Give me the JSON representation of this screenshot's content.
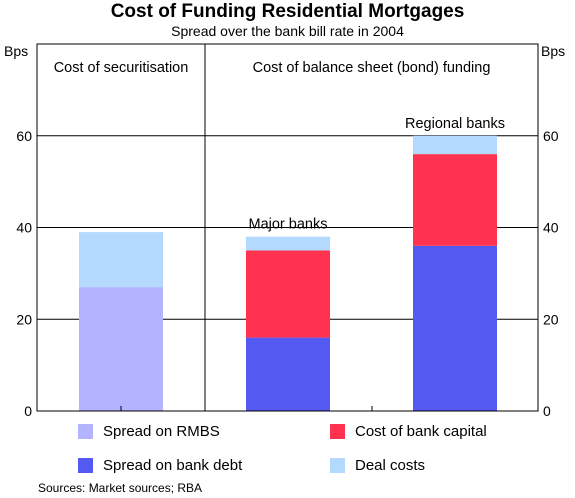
{
  "title": "Cost of Funding Residential Mortgages",
  "subtitle": "Spread over the bank bill rate in 2004",
  "source": "Sources: Market sources; RBA",
  "chart_data": {
    "type": "bar",
    "stacked": true,
    "title": "Cost of Funding Residential Mortgages",
    "subtitle": "Spread over the bank bill rate in 2004",
    "ylabel_left": "Bps",
    "ylabel_right": "Bps",
    "ylim": [
      0,
      80
    ],
    "yticks": [
      0,
      20,
      40,
      60
    ],
    "grid": true,
    "panels": [
      {
        "label": "Cost of securitisation",
        "categories": [
          0
        ]
      },
      {
        "label": "Cost of balance sheet (bond) funding",
        "categories": [
          1,
          2
        ]
      }
    ],
    "categories": [
      "",
      "Major banks",
      "Regional banks"
    ],
    "series": [
      {
        "name": "Spread on RMBS",
        "color": "#b3b3ff",
        "values": [
          27,
          0,
          0
        ]
      },
      {
        "name": "Spread on bank debt",
        "color": "#5459f2",
        "values": [
          0,
          16,
          36
        ]
      },
      {
        "name": "Cost of bank capital",
        "color": "#ff334f",
        "values": [
          0,
          19,
          20
        ]
      },
      {
        "name": "Deal costs",
        "color": "#b3d9ff",
        "values": [
          12,
          3,
          4
        ]
      }
    ],
    "legend": {
      "placement": "bottom",
      "entries": [
        {
          "name": "Spread on RMBS",
          "color": "#b3b3ff"
        },
        {
          "name": "Cost of bank capital",
          "color": "#ff334f"
        },
        {
          "name": "Spread on bank debt",
          "color": "#5459f2"
        },
        {
          "name": "Deal costs",
          "color": "#b3d9ff"
        }
      ]
    }
  }
}
